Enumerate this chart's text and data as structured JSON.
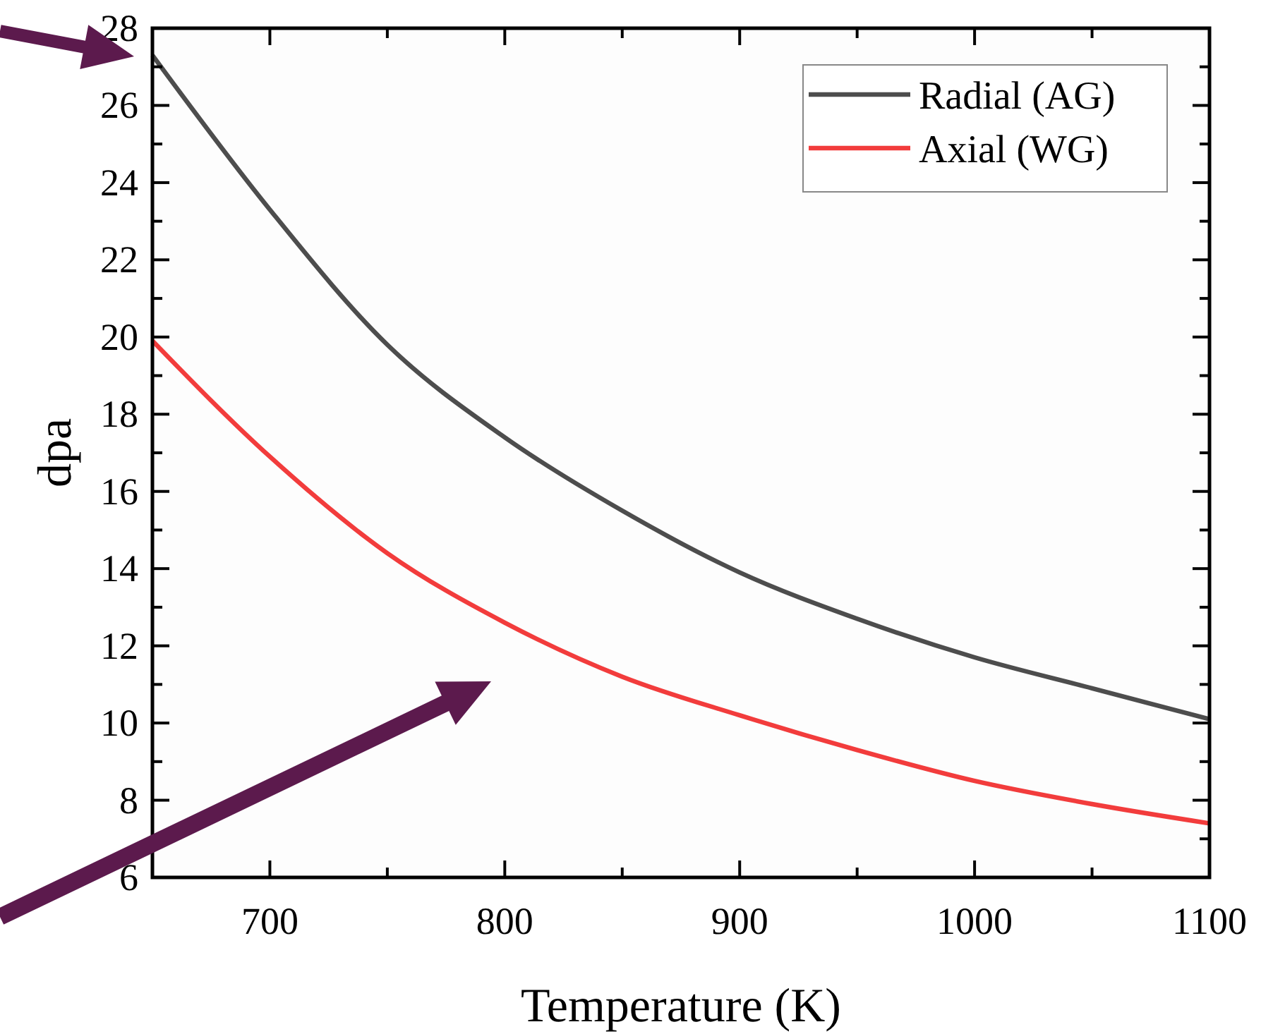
{
  "chart_data": {
    "type": "line",
    "xlabel": "Temperature (K)",
    "ylabel": "dpa",
    "xlim": [
      650,
      1100
    ],
    "ylim": [
      6,
      28
    ],
    "xticks": [
      {
        "value": 650,
        "label": null
      },
      700,
      {
        "value": 750,
        "label": null
      },
      800,
      {
        "value": 850,
        "label": null
      },
      900,
      {
        "value": 950,
        "label": null
      },
      1000,
      {
        "value": 1050,
        "label": null
      },
      1100
    ],
    "yticks": [
      6,
      {
        "value": 7,
        "label": null
      },
      8,
      {
        "value": 9,
        "label": null
      },
      10,
      {
        "value": 11,
        "label": null
      },
      12,
      {
        "value": 13,
        "label": null
      },
      14,
      {
        "value": 15,
        "label": null
      },
      16,
      {
        "value": 17,
        "label": null
      },
      18,
      {
        "value": 19,
        "label": null
      },
      20,
      {
        "value": 21,
        "label": null
      },
      22,
      {
        "value": 23,
        "label": null
      },
      24,
      {
        "value": 25,
        "label": null
      },
      26,
      {
        "value": 27,
        "label": null
      },
      28
    ],
    "x": [
      650,
      700,
      750,
      800,
      850,
      900,
      950,
      1000,
      1050,
      1100
    ],
    "series": [
      {
        "name": "Radial (AG)",
        "color": "#4d4d4d",
        "values": [
          27.3,
          23.3,
          19.8,
          17.4,
          15.5,
          13.9,
          12.7,
          11.7,
          10.9,
          10.1
        ]
      },
      {
        "name": "Axial (WG)",
        "color": "#f23c3c",
        "values": [
          19.9,
          16.9,
          14.4,
          12.6,
          11.2,
          10.2,
          9.3,
          8.5,
          7.9,
          7.4
        ]
      }
    ],
    "legend": "top right",
    "grid": false,
    "marker": "none",
    "line_style": "solid"
  }
}
